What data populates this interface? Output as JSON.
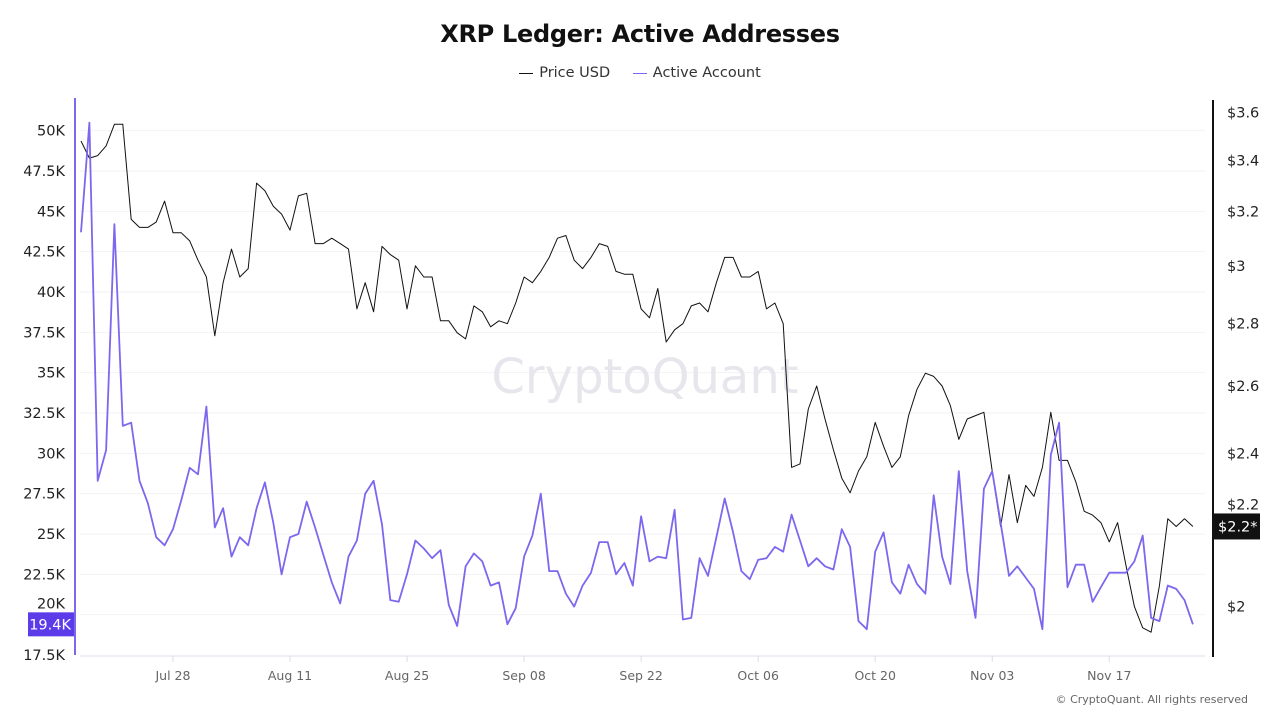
{
  "chart_data": {
    "type": "line",
    "title": "XRP Ledger: Active Addresses",
    "legend_position": "top-center",
    "grid": true,
    "watermark": "CryptoQuant",
    "copyright": "© CryptoQuant. All rights reserved",
    "x_tick_labels": [
      "Jul 28",
      "Aug 11",
      "Aug 25",
      "Sep 08",
      "Sep 22",
      "Oct 06",
      "Oct 20",
      "Nov 03",
      "Nov 17"
    ],
    "left_axis": {
      "ylim": [
        17500,
        51900
      ],
      "scale": "linear",
      "ticks": [
        17500,
        20000,
        22500,
        25000,
        27500,
        30000,
        32500,
        35000,
        37500,
        40000,
        42500,
        45000,
        47500,
        50000
      ],
      "tick_labels": [
        "17.5K",
        "20K",
        "22.5K",
        "25K",
        "27.5K",
        "30K",
        "32.5K",
        "35K",
        "37.5K",
        "40K",
        "42.5K",
        "45K",
        "47.5K",
        "50K"
      ],
      "current_value_label": "19.4K",
      "color": "#7b68ee",
      "badge_color": "#5b3ce8"
    },
    "right_axis": {
      "ylim": [
        1.888,
        3.654
      ],
      "scale": "log",
      "ticks": [
        2,
        2.2,
        2.4,
        2.6,
        2.8,
        3,
        3.2,
        3.4,
        3.6
      ],
      "tick_labels": [
        "$2",
        "$2.2",
        "$2.4",
        "$2.6",
        "$2.8",
        "$3",
        "$3.2",
        "$3.4",
        "$3.6"
      ],
      "current_value_label": "$2.2*",
      "color": "#111111"
    },
    "x": [
      "Jul 17",
      "Jul 18",
      "Jul 19",
      "Jul 20",
      "Jul 21",
      "Jul 22",
      "Jul 23",
      "Jul 24",
      "Jul 25",
      "Jul 26",
      "Jul 27",
      "Jul 28",
      "Jul 29",
      "Jul 30",
      "Jul 31",
      "Aug 01",
      "Aug 02",
      "Aug 03",
      "Aug 04",
      "Aug 05",
      "Aug 06",
      "Aug 07",
      "Aug 08",
      "Aug 09",
      "Aug 10",
      "Aug 11",
      "Aug 12",
      "Aug 13",
      "Aug 14",
      "Aug 15",
      "Aug 16",
      "Aug 17",
      "Aug 18",
      "Aug 19",
      "Aug 20",
      "Aug 21",
      "Aug 22",
      "Aug 23",
      "Aug 24",
      "Aug 25",
      "Aug 26",
      "Aug 27",
      "Aug 28",
      "Aug 29",
      "Aug 30",
      "Aug 31",
      "Sep 01",
      "Sep 02",
      "Sep 03",
      "Sep 04",
      "Sep 05",
      "Sep 06",
      "Sep 07",
      "Sep 08",
      "Sep 09",
      "Sep 10",
      "Sep 11",
      "Sep 12",
      "Sep 13",
      "Sep 14",
      "Sep 15",
      "Sep 16",
      "Sep 17",
      "Sep 18",
      "Sep 19",
      "Sep 20",
      "Sep 21",
      "Sep 22",
      "Sep 23",
      "Sep 24",
      "Sep 25",
      "Sep 26",
      "Sep 27",
      "Sep 28",
      "Sep 29",
      "Sep 30",
      "Oct 01",
      "Oct 02",
      "Oct 03",
      "Oct 04",
      "Oct 05",
      "Oct 06",
      "Oct 07",
      "Oct 08",
      "Oct 09",
      "Oct 10",
      "Oct 11",
      "Oct 12",
      "Oct 13",
      "Oct 14",
      "Oct 15",
      "Oct 16",
      "Oct 17",
      "Oct 18",
      "Oct 19",
      "Oct 20",
      "Oct 21",
      "Oct 22",
      "Oct 23",
      "Oct 24",
      "Oct 25",
      "Oct 26",
      "Oct 27",
      "Oct 28",
      "Oct 29",
      "Oct 30",
      "Oct 31",
      "Nov 01",
      "Nov 02",
      "Nov 03",
      "Nov 04",
      "Nov 05",
      "Nov 06",
      "Nov 07",
      "Nov 08",
      "Nov 09",
      "Nov 10",
      "Nov 11",
      "Nov 12",
      "Nov 13",
      "Nov 14",
      "Nov 15",
      "Nov 16",
      "Nov 17",
      "Nov 18",
      "Nov 19",
      "Nov 20",
      "Nov 21",
      "Nov 22",
      "Nov 23",
      "Nov 24",
      "Nov 25",
      "Nov 26",
      "Nov 27"
    ],
    "series": [
      {
        "name": "Price USD",
        "axis": "right",
        "color": "#111111",
        "values": [
          3.48,
          3.41,
          3.42,
          3.46,
          3.55,
          3.55,
          3.17,
          3.14,
          3.14,
          3.16,
          3.24,
          3.12,
          3.12,
          3.09,
          3.02,
          2.96,
          2.76,
          2.94,
          3.06,
          2.96,
          2.99,
          3.31,
          3.28,
          3.22,
          3.19,
          3.13,
          3.26,
          3.27,
          3.08,
          3.08,
          3.1,
          3.08,
          3.06,
          2.85,
          2.94,
          2.84,
          3.07,
          3.04,
          3.02,
          2.85,
          3.0,
          2.96,
          2.96,
          2.81,
          2.81,
          2.77,
          2.75,
          2.86,
          2.84,
          2.79,
          2.81,
          2.8,
          2.87,
          2.96,
          2.94,
          2.98,
          3.03,
          3.1,
          3.11,
          3.02,
          2.99,
          3.03,
          3.08,
          3.07,
          2.98,
          2.97,
          2.97,
          2.85,
          2.82,
          2.92,
          2.74,
          2.78,
          2.8,
          2.86,
          2.87,
          2.84,
          2.94,
          3.03,
          3.03,
          2.96,
          2.96,
          2.98,
          2.85,
          2.87,
          2.8,
          2.36,
          2.37,
          2.53,
          2.6,
          2.5,
          2.41,
          2.33,
          2.29,
          2.35,
          2.39,
          2.49,
          2.42,
          2.36,
          2.39,
          2.51,
          2.59,
          2.64,
          2.63,
          2.6,
          2.54,
          2.44,
          2.5,
          2.51,
          2.52,
          2.35,
          2.2,
          2.34,
          2.21,
          2.31,
          2.28,
          2.36,
          2.52,
          2.38,
          2.38,
          2.32,
          2.24,
          2.23,
          2.21,
          2.16,
          2.21,
          2.1,
          2.0,
          1.95,
          1.94,
          2.05,
          2.22,
          2.2,
          2.22,
          2.2
        ]
      },
      {
        "name": "Active Account",
        "axis": "left",
        "color": "#7b68ee",
        "values": [
          43700,
          50500,
          28300,
          30200,
          44200,
          31700,
          31900,
          28300,
          26900,
          24800,
          24300,
          25300,
          27100,
          29100,
          28700,
          32900,
          25400,
          26600,
          23600,
          24800,
          24300,
          26600,
          28200,
          25700,
          22500,
          24800,
          25000,
          27000,
          25400,
          23700,
          22000,
          20700,
          23600,
          24600,
          27500,
          28300,
          25600,
          20900,
          20800,
          22500,
          24600,
          24100,
          23500,
          24000,
          20600,
          19300,
          23000,
          23800,
          23300,
          21800,
          22000,
          19400,
          20400,
          23600,
          24900,
          27500,
          22700,
          22700,
          21300,
          20500,
          21800,
          22600,
          24500,
          24500,
          22500,
          23200,
          21800,
          26100,
          23300,
          23600,
          23500,
          26500,
          19700,
          19800,
          23500,
          22400,
          24800,
          27200,
          25100,
          22700,
          22200,
          23400,
          23500,
          24200,
          23900,
          26200,
          24600,
          23000,
          23500,
          23000,
          22800,
          25300,
          24200,
          19600,
          19100,
          23900,
          25100,
          22000,
          21300,
          23100,
          21900,
          21300,
          27400,
          23600,
          21900,
          28900,
          22700,
          19800,
          27800,
          28900,
          25700,
          22400,
          23000,
          22300,
          21600,
          19100,
          29900,
          31900,
          21700,
          23100,
          23100,
          20800,
          21700,
          22600,
          22600,
          22600,
          23300,
          24900,
          19800,
          19600,
          21800,
          21600,
          20900,
          19400
        ]
      }
    ]
  }
}
